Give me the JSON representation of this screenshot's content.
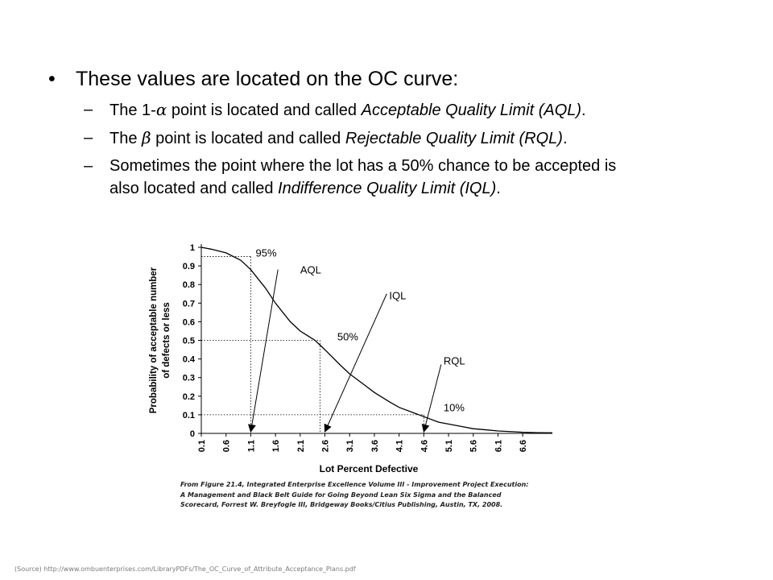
{
  "bullets": {
    "main": {
      "text": "These values are located on the OC curve:"
    },
    "sub": [
      {
        "prefix": "The 1-",
        "symbol": "α",
        "middle": " point is located and called ",
        "term": "Acceptable Quality Limit (AQL)",
        "suffix": "."
      },
      {
        "prefix": "The ",
        "symbol": "β",
        "middle": " point is located and called ",
        "term": "Rejectable Quality Limit (RQL)",
        "suffix": "."
      },
      {
        "line1": "Sometimes the point where the lot has a 50% chance to be accepted is",
        "line2_prefix": "also located and called ",
        "term": "Indifference Quality Limit (IQL)",
        "suffix": "."
      }
    ]
  },
  "chart_data": {
    "type": "line",
    "xlabel": "Lot Percent Defective",
    "ylabel_line1": "Probability of acceptable number",
    "ylabel_line2": "of defects or less",
    "x_ticks": [
      "0.1",
      "0.6",
      "1.1",
      "1.6",
      "2.1",
      "2.6",
      "3.1",
      "3.6",
      "4.1",
      "4.6",
      "5.1",
      "5.6",
      "6.1",
      "6.6"
    ],
    "y_ticks": [
      "0",
      "0.1",
      "0.2",
      "0.3",
      "0.4",
      "0.5",
      "0.6",
      "0.7",
      "0.8",
      "0.9",
      "1"
    ],
    "xlim": [
      0.1,
      7.2
    ],
    "ylim": [
      0,
      1
    ],
    "series": [
      {
        "x": [
          0.1,
          0.3,
          0.6,
          0.9,
          1.1,
          1.4,
          1.6,
          1.9,
          2.1,
          2.4,
          2.6,
          2.9,
          3.1,
          3.4,
          3.6,
          3.9,
          4.1,
          4.4,
          4.6,
          4.9,
          5.1,
          5.4,
          5.6,
          5.9,
          6.1,
          6.4,
          6.6,
          6.9,
          7.2
        ],
        "y": [
          1.0,
          0.99,
          0.97,
          0.93,
          0.88,
          0.78,
          0.7,
          0.6,
          0.55,
          0.5,
          0.45,
          0.37,
          0.32,
          0.26,
          0.22,
          0.17,
          0.14,
          0.11,
          0.09,
          0.06,
          0.05,
          0.035,
          0.025,
          0.018,
          0.013,
          0.009,
          0.006,
          0.004,
          0.003
        ]
      }
    ],
    "annotations": [
      {
        "text": "95%",
        "x": 1.2,
        "y": 0.95
      },
      {
        "text": "AQL",
        "x": 2.1,
        "y": 0.86
      },
      {
        "text": "IQL",
        "x": 3.9,
        "y": 0.72
      },
      {
        "text": "50%",
        "x": 2.85,
        "y": 0.5
      },
      {
        "text": "RQL",
        "x": 5.0,
        "y": 0.37
      },
      {
        "text": "10%",
        "x": 5.0,
        "y": 0.12
      }
    ],
    "reference_points": [
      {
        "x": 1.1,
        "y": 0.95
      },
      {
        "x": 2.5,
        "y": 0.5
      },
      {
        "x": 4.6,
        "y": 0.1
      }
    ],
    "arrows": [
      {
        "from": [
          1.65,
          0.88
        ],
        "to": [
          1.1,
          0.0
        ]
      },
      {
        "from": [
          3.85,
          0.75
        ],
        "to": [
          2.6,
          0.0
        ]
      },
      {
        "from": [
          4.95,
          0.37
        ],
        "to": [
          4.6,
          0.0
        ]
      }
    ],
    "grid": "dotted reference lines only"
  },
  "caption": {
    "line1": "From Figure 21.4, Integrated Enterprise Excellence Volume III - Improvement Project Execution:",
    "line2": "A Management and Black Belt Guide for Going Beyond Lean Six Sigma and the Balanced",
    "line3": "Scorecard, Forrest W. Breyfogle III, Bridgeway Books/Citius Publishing, Austin, TX, 2008."
  },
  "source": "(Source) http://www.ombuenterprises.com/LibraryPDFs/The_OC_Curve_of_Attribute_Acceptance_Plans.pdf"
}
